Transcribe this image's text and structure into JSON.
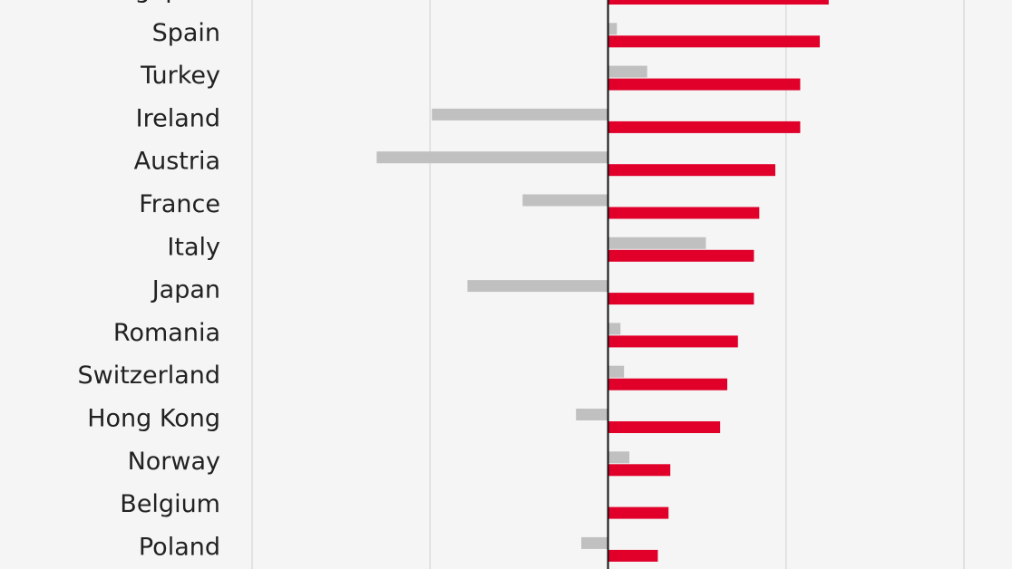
{
  "chart_data": {
    "type": "hbar",
    "categories": [
      "Singapore",
      "Spain",
      "Turkey",
      "Ireland",
      "Austria",
      "France",
      "Italy",
      "Japan",
      "Romania",
      "Switzerland",
      "Hong Kong",
      "Norway",
      "Belgium",
      "Poland"
    ],
    "series": [
      {
        "color": "#c0c0c0",
        "values": [
          0,
          0.05,
          0.22,
          -0.99,
          -1.3,
          -0.48,
          0.55,
          -0.79,
          0.07,
          0.09,
          -0.18,
          0.12,
          0,
          -0.15
        ]
      },
      {
        "color": "#e0002a",
        "values": [
          1.24,
          1.19,
          1.08,
          1.08,
          0.94,
          0.85,
          0.82,
          0.82,
          0.73,
          0.67,
          0.63,
          0.35,
          0.34,
          0.28
        ]
      }
    ],
    "xlim": [
      -2,
      2
    ],
    "xticks": [
      -2,
      -1,
      0,
      1,
      2
    ],
    "grid": true
  }
}
